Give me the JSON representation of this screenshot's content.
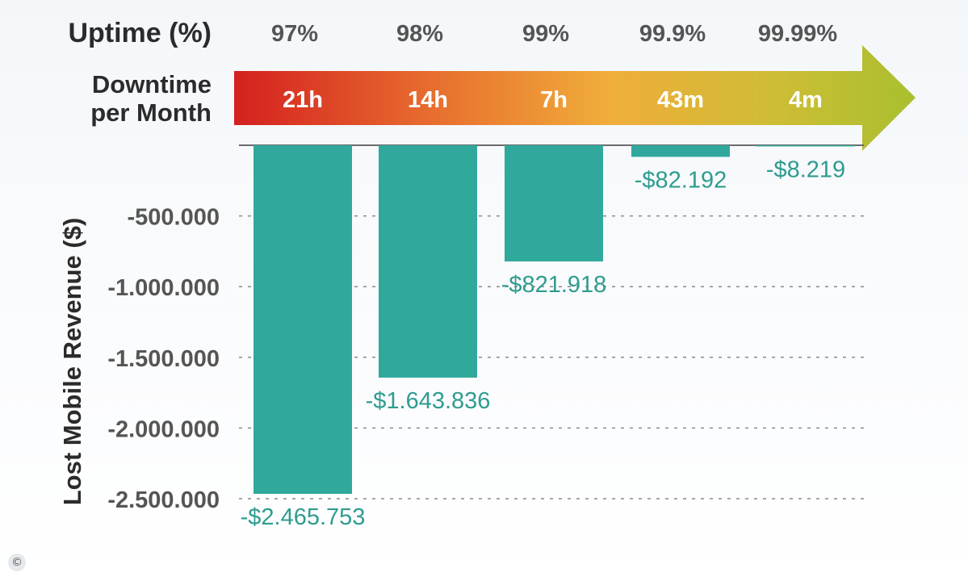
{
  "colors": {
    "bar": "#31a89c",
    "label": "#2f9c8f",
    "tick": "#555555",
    "header": "#2b2b2b",
    "arrow_text": "#ffffff",
    "arrow_gradient": [
      "#d4201f",
      "#e8702f",
      "#f0ad3a",
      "#c9bd34",
      "#a9bf2e"
    ]
  },
  "header": {
    "uptime_label": "Uptime (%)",
    "downtime_label_line1": "Downtime",
    "downtime_label_line2": "per Month"
  },
  "copyright_symbol": "©",
  "chart_data": {
    "type": "bar",
    "categories": [
      "97%",
      "98%",
      "99%",
      "99.9%",
      "99.99%"
    ],
    "downtime": [
      "21h",
      "14h",
      "7h",
      "43m",
      "4m"
    ],
    "values": [
      -2465753,
      -1643836,
      -821918,
      -82192,
      -8219
    ],
    "data_labels": [
      "-$2.465.753",
      "-$1.643.836",
      "-$821.918",
      "-$82.192",
      "-$8.219"
    ],
    "ylabel": "Lost Mobile Revenue ($)",
    "ylim": [
      -2500000,
      0
    ],
    "y_ticks": [
      -500000,
      -1000000,
      -1500000,
      -2000000,
      -2500000
    ],
    "y_tick_labels": [
      "-500.000",
      "-1.000.000",
      "-1.500.000",
      "-2.000.000",
      "-2.500.000"
    ],
    "grid": "horizontal dashed"
  }
}
